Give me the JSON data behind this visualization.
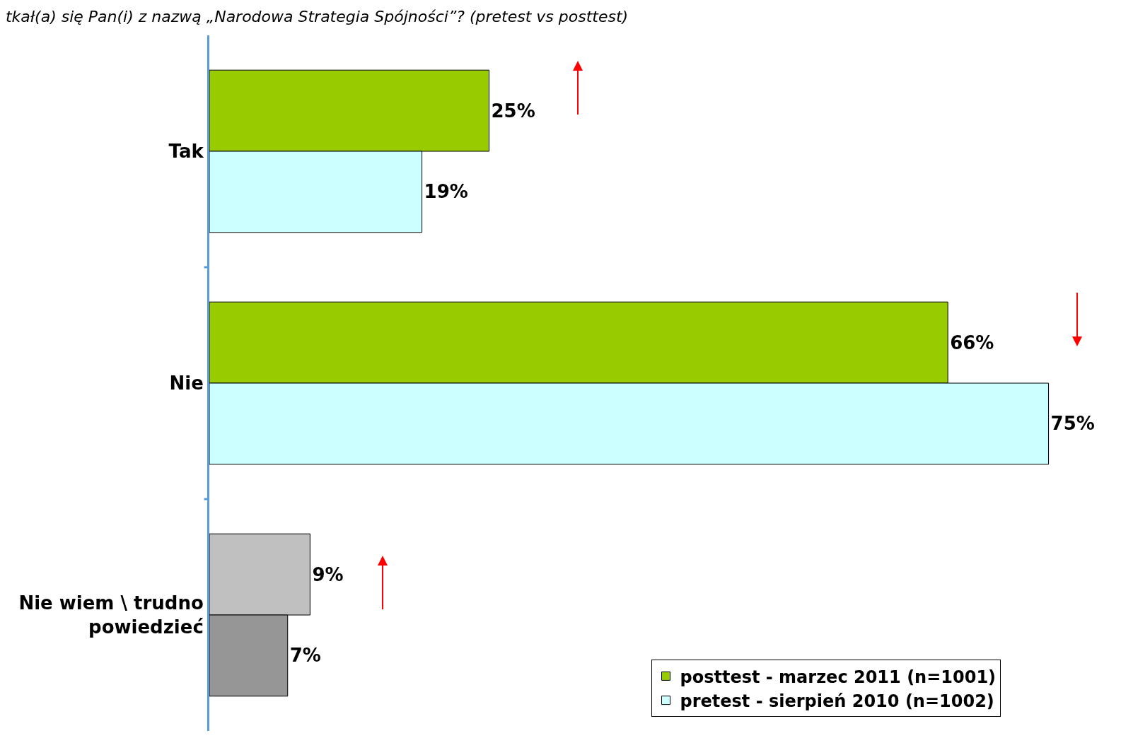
{
  "chart_data": {
    "type": "bar",
    "orientation": "horizontal",
    "title": "tkał(a) się Pan(i) z nazwą „Narodowa Strategia Spójności”? (pretest vs posttest)",
    "categories": [
      "Tak",
      "Nie",
      "Nie wiem \\ trudno powiedzieć"
    ],
    "series": [
      {
        "name": "posttest - marzec 2011 (n=1001)",
        "color": "#99cc00",
        "colors": [
          null,
          null,
          "#c0c0c0"
        ],
        "values": [
          25,
          66,
          9
        ],
        "value_labels": [
          "25%",
          "66%",
          "9%"
        ]
      },
      {
        "name": "pretest - sierpień 2010 (n=1002)",
        "color": "#ccffff",
        "colors": [
          null,
          null,
          "#969696"
        ],
        "values": [
          19,
          75,
          7
        ],
        "value_labels": [
          "19%",
          "75%",
          "7%"
        ]
      }
    ],
    "legend": "bottom right",
    "grid": false
  }
}
